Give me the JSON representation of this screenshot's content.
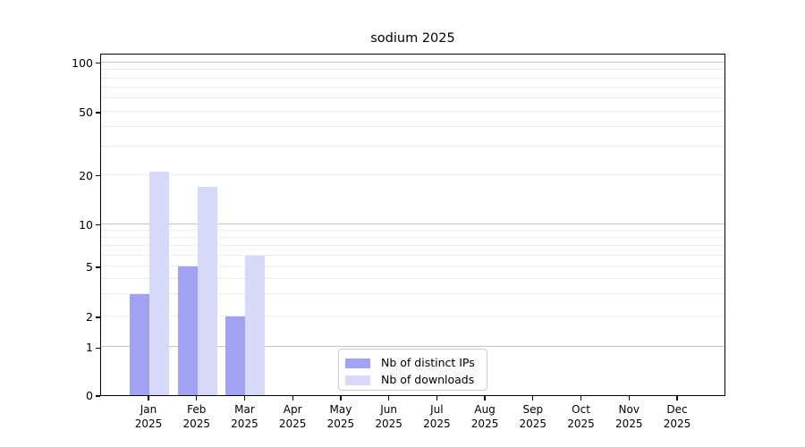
{
  "title": "sodium 2025",
  "chart_data": {
    "type": "bar",
    "categories": [
      "Jan",
      "Feb",
      "Mar",
      "Apr",
      "May",
      "Jun",
      "Jul",
      "Aug",
      "Sep",
      "Oct",
      "Nov",
      "Dec"
    ],
    "year": "2025",
    "series": [
      {
        "name": "Nb of distinct IPs",
        "color": "#a2a2f2",
        "values": [
          3,
          5,
          2,
          0,
          0,
          0,
          0,
          0,
          0,
          0,
          0,
          0
        ]
      },
      {
        "name": "Nb of downloads",
        "color": "#d8d8f8",
        "values": [
          21,
          17,
          6,
          0,
          0,
          0,
          0,
          0,
          0,
          0,
          0,
          0
        ]
      }
    ],
    "title": "sodium 2025",
    "xlabel": "",
    "ylabel": "",
    "yscale": "asinh",
    "y_ticks": [
      0,
      1,
      2,
      5,
      10,
      20,
      50,
      100
    ],
    "y_major_gridlines": [
      1,
      10,
      100
    ],
    "y_minor_gridlines": [
      2,
      3,
      4,
      5,
      6,
      7,
      8,
      9,
      20,
      30,
      40,
      50,
      60,
      70,
      80,
      90
    ],
    "ylim": [
      0,
      115
    ],
    "grid": true,
    "legend_position": "lower center"
  },
  "colors": {
    "major_grid": "#c3c3c3",
    "minor_grid": "#ececec",
    "spine": "#000000",
    "background": "#ffffff"
  }
}
